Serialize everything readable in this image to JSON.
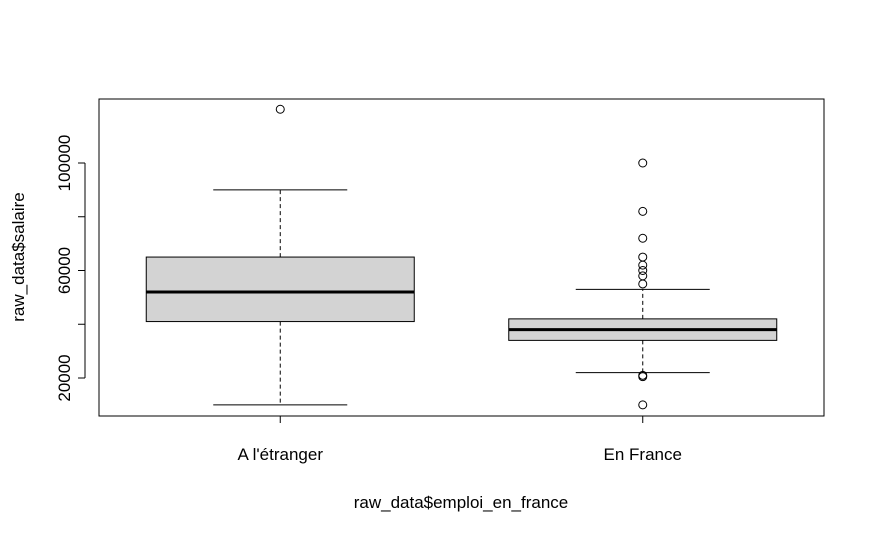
{
  "chart_data": {
    "type": "boxplot",
    "title": "",
    "xlabel": "raw_data$emploi_en_france",
    "ylabel": "raw_data$salaire",
    "ylim": [
      5000,
      125000
    ],
    "yticks": [
      20000,
      60000,
      100000
    ],
    "yticks_minor": [
      40000,
      80000
    ],
    "categories": [
      "A l'étranger",
      "En France"
    ],
    "boxes": [
      {
        "name": "A l'étranger",
        "whisker_low": 10000,
        "q1": 41000,
        "median": 52000,
        "q3": 65000,
        "whisker_high": 90000,
        "outliers": [
          120000
        ]
      },
      {
        "name": "En France",
        "whisker_low": 22000,
        "q1": 34000,
        "median": 38000,
        "q3": 42000,
        "whisker_high": 53000,
        "outliers": [
          10000,
          20500,
          21000,
          55000,
          58000,
          60000,
          62000,
          65000,
          72000,
          82000,
          100000
        ]
      }
    ],
    "colors": {
      "box_fill": "#d3d3d3",
      "stroke": "#000000"
    },
    "grid": false,
    "legend": "none"
  }
}
